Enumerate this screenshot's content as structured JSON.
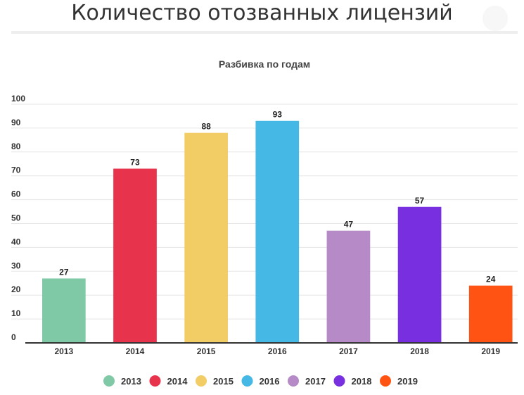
{
  "page": {
    "title": "Количество отозванных лицензий"
  },
  "chart_data": {
    "type": "bar",
    "title": "Разбивка по годам",
    "xlabel": "",
    "ylabel": "",
    "categories": [
      "2013",
      "2014",
      "2015",
      "2016",
      "2017",
      "2018",
      "2019"
    ],
    "values": [
      27,
      73,
      88,
      93,
      47,
      57,
      24
    ],
    "colors": [
      "#80c9a6",
      "#e8334d",
      "#f2cd66",
      "#45b8e6",
      "#b58ac7",
      "#772fe0",
      "#ff5314"
    ],
    "ylim": [
      0,
      100
    ],
    "yticks": [
      0,
      10,
      20,
      30,
      40,
      50,
      60,
      70,
      80,
      90,
      100
    ],
    "grid": true,
    "data_labels": true,
    "legend": {
      "position": "bottom-center",
      "entries": [
        "2013",
        "2014",
        "2015",
        "2016",
        "2017",
        "2018",
        "2019"
      ]
    }
  }
}
